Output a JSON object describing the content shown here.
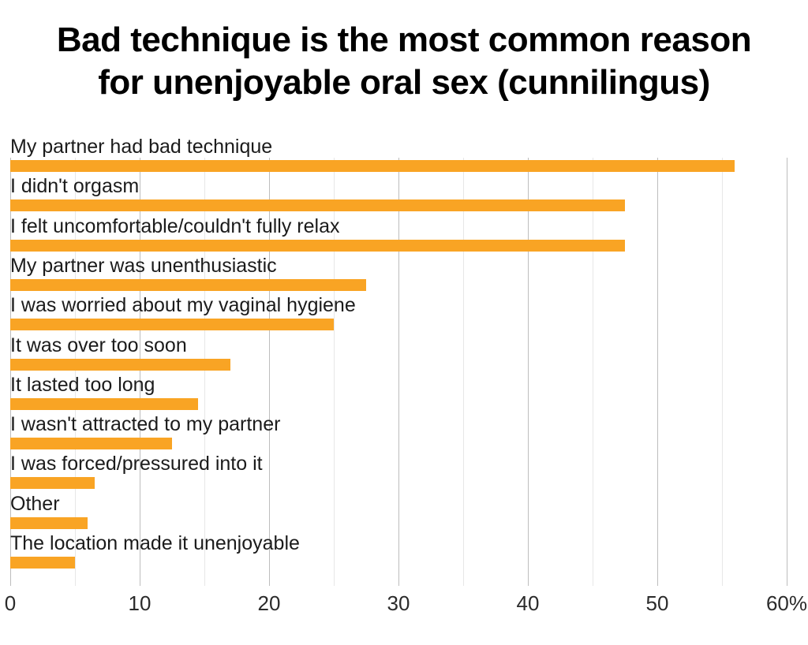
{
  "title": {
    "line1": "Bad technique is the most common reason",
    "line2": "for unenjoyable oral sex (cunnilingus)"
  },
  "chart_data": {
    "type": "bar",
    "orientation": "horizontal",
    "title": "Bad technique is the most common reason for unenjoyable oral sex (cunnilingus)",
    "categories": [
      "My partner had bad technique",
      "I didn't orgasm",
      "I felt uncomfortable/couldn't fully relax",
      "My partner was unenthusiastic",
      "I was worried about my vaginal hygiene",
      "It was over too soon",
      "It lasted too long",
      "I wasn't attracted to my partner",
      "I was forced/pressured into it",
      "Other",
      "The location made it unenjoyable"
    ],
    "values": [
      56,
      47.5,
      47.5,
      27.5,
      25,
      17,
      14.5,
      12.5,
      6.5,
      6,
      5
    ],
    "value_unit": "%",
    "xlabel": "",
    "ylabel": "",
    "xlim": [
      0,
      60
    ],
    "x_ticks": [
      0,
      10,
      20,
      30,
      40,
      50,
      60
    ],
    "x_tick_labels": [
      "0",
      "10",
      "20",
      "30",
      "40",
      "50",
      "60%"
    ],
    "gridline_step": 5,
    "grid": true,
    "legend_position": "none",
    "colors": {
      "bar": "#F9A424",
      "grid_major": "#bdbdbd",
      "grid_minor": "#e7e7e7",
      "title_text": "#000000",
      "label_text": "#1b1b1b",
      "tick_text": "#2b2b2b",
      "background": "#ffffff"
    }
  }
}
